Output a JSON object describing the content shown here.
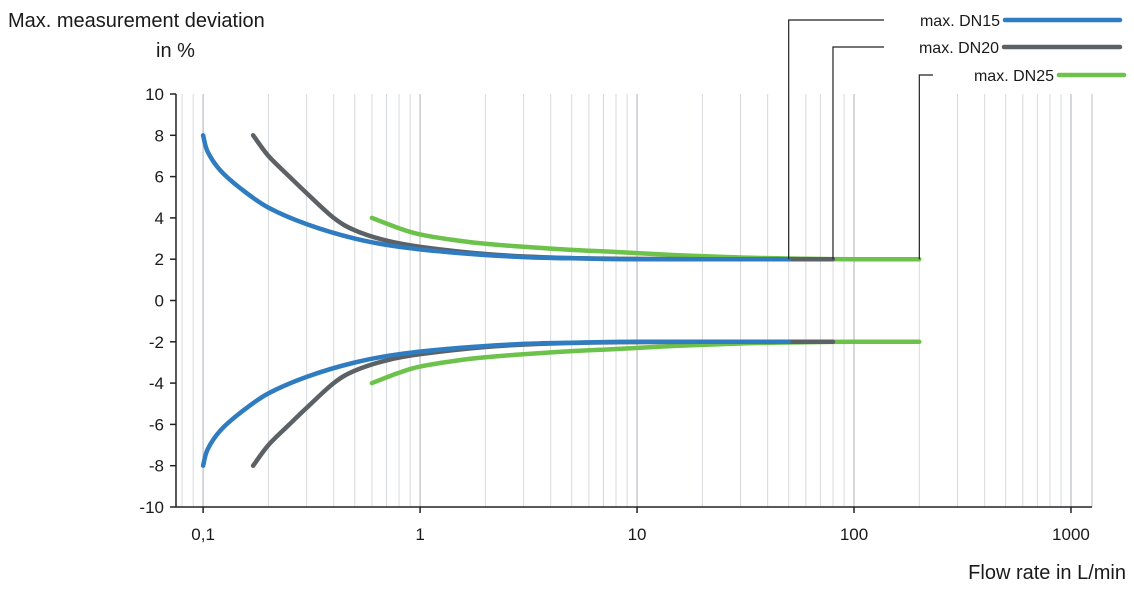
{
  "chart_data": {
    "type": "line",
    "ylabel_lines": [
      "Max. measurement deviation",
      "in %"
    ],
    "xlabel": "Flow rate in L/min",
    "x_scale": "log",
    "xlim": [
      0.075,
      1250
    ],
    "ylim": [
      -10,
      10
    ],
    "x_ticks": [
      {
        "value": 0.1,
        "label": "0,1"
      },
      {
        "value": 1,
        "label": "1"
      },
      {
        "value": 10,
        "label": "10"
      },
      {
        "value": 100,
        "label": "100"
      },
      {
        "value": 1000,
        "label": "1000"
      }
    ],
    "y_ticks": [
      10,
      8,
      6,
      4,
      2,
      0,
      -2,
      -4,
      -6,
      -8,
      -10
    ],
    "grid": "vertical minor and major log lines",
    "legend_position": "top-right",
    "series": [
      {
        "name": "max. DN15",
        "color": "#2f7cc1",
        "max_flow": 50,
        "upper": [
          [
            0.1,
            8
          ],
          [
            0.105,
            7.2
          ],
          [
            0.12,
            6.3
          ],
          [
            0.15,
            5.4
          ],
          [
            0.2,
            4.5
          ],
          [
            0.3,
            3.7
          ],
          [
            0.5,
            3.0
          ],
          [
            0.8,
            2.6
          ],
          [
            1.5,
            2.3
          ],
          [
            3,
            2.1
          ],
          [
            6,
            2.03
          ],
          [
            10,
            2.0
          ],
          [
            50,
            2.0
          ]
        ],
        "lower": [
          [
            0.1,
            -8
          ],
          [
            0.105,
            -7.2
          ],
          [
            0.12,
            -6.3
          ],
          [
            0.15,
            -5.4
          ],
          [
            0.2,
            -4.5
          ],
          [
            0.3,
            -3.7
          ],
          [
            0.5,
            -3.0
          ],
          [
            0.8,
            -2.6
          ],
          [
            1.5,
            -2.3
          ],
          [
            3,
            -2.1
          ],
          [
            6,
            -2.03
          ],
          [
            10,
            -2.0
          ],
          [
            50,
            -2.0
          ]
        ]
      },
      {
        "name": "max. DN20",
        "color": "#5c6166",
        "max_flow": 80,
        "upper": [
          [
            0.17,
            8
          ],
          [
            0.2,
            7.0
          ],
          [
            0.25,
            6.0
          ],
          [
            0.3,
            5.2
          ],
          [
            0.4,
            4.0
          ],
          [
            0.5,
            3.4
          ],
          [
            0.7,
            2.9
          ],
          [
            1,
            2.6
          ],
          [
            2,
            2.25
          ],
          [
            4,
            2.08
          ],
          [
            8,
            2.02
          ],
          [
            20,
            2.0
          ],
          [
            80,
            2.0
          ]
        ],
        "lower": [
          [
            0.17,
            -8
          ],
          [
            0.2,
            -7.0
          ],
          [
            0.25,
            -6.0
          ],
          [
            0.3,
            -5.2
          ],
          [
            0.4,
            -4.0
          ],
          [
            0.5,
            -3.4
          ],
          [
            0.7,
            -2.9
          ],
          [
            1,
            -2.6
          ],
          [
            2,
            -2.25
          ],
          [
            4,
            -2.08
          ],
          [
            8,
            -2.02
          ],
          [
            20,
            -2.0
          ],
          [
            80,
            -2.0
          ]
        ]
      },
      {
        "name": "max. DN25",
        "color": "#6cc24a",
        "max_flow": 200,
        "upper": [
          [
            0.6,
            4
          ],
          [
            0.8,
            3.5
          ],
          [
            1,
            3.2
          ],
          [
            1.5,
            2.9
          ],
          [
            2,
            2.75
          ],
          [
            3,
            2.6
          ],
          [
            5,
            2.45
          ],
          [
            8,
            2.35
          ],
          [
            15,
            2.2
          ],
          [
            30,
            2.08
          ],
          [
            60,
            2.02
          ],
          [
            100,
            2.0
          ],
          [
            200,
            2.0
          ]
        ],
        "lower": [
          [
            0.6,
            -4
          ],
          [
            0.8,
            -3.5
          ],
          [
            1,
            -3.2
          ],
          [
            1.5,
            -2.9
          ],
          [
            2,
            -2.75
          ],
          [
            3,
            -2.6
          ],
          [
            5,
            -2.45
          ],
          [
            8,
            -2.35
          ],
          [
            15,
            -2.2
          ],
          [
            30,
            -2.08
          ],
          [
            60,
            -2.02
          ],
          [
            100,
            -2.0
          ],
          [
            200,
            -2.0
          ]
        ]
      }
    ]
  }
}
